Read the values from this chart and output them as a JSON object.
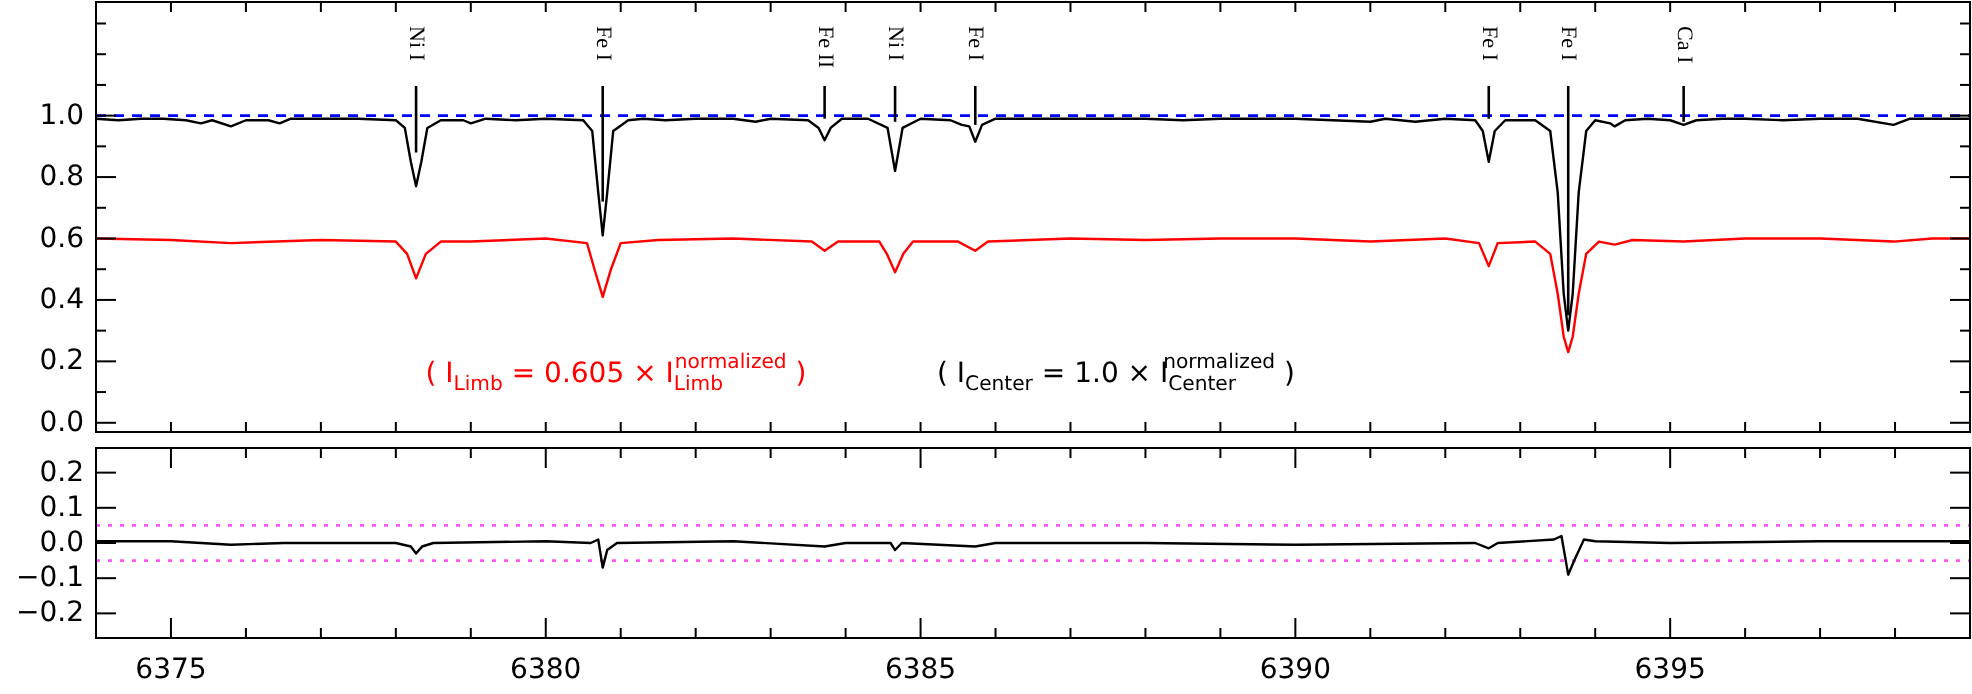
{
  "chart_data": [
    {
      "type": "line",
      "xlim": [
        6374,
        6399
      ],
      "ylim": [
        -0.03,
        1.37
      ],
      "xticks": [
        {
          "value": 6374,
          "label": null
        },
        {
          "value": 6375,
          "label": null
        },
        {
          "value": 6376,
          "label": null
        },
        {
          "value": 6377,
          "label": null
        },
        {
          "value": 6378,
          "label": null
        },
        {
          "value": 6379,
          "label": null
        },
        {
          "value": 6380,
          "label": null
        },
        {
          "value": 6381,
          "label": null
        },
        {
          "value": 6382,
          "label": null
        },
        {
          "value": 6383,
          "label": null
        },
        {
          "value": 6384,
          "label": null
        },
        {
          "value": 6385,
          "label": null
        },
        {
          "value": 6386,
          "label": null
        },
        {
          "value": 6387,
          "label": null
        },
        {
          "value": 6388,
          "label": null
        },
        {
          "value": 6389,
          "label": null
        },
        {
          "value": 6390,
          "label": null
        },
        {
          "value": 6391,
          "label": null
        },
        {
          "value": 6392,
          "label": null
        },
        {
          "value": 6393,
          "label": null
        },
        {
          "value": 6394,
          "label": null
        },
        {
          "value": 6395,
          "label": null
        },
        {
          "value": 6396,
          "label": null
        },
        {
          "value": 6397,
          "label": null
        },
        {
          "value": 6398,
          "label": null
        }
      ],
      "yticks": [
        {
          "value": 0,
          "label": "0.0"
        },
        {
          "value": 0.1,
          "label": null
        },
        {
          "value": 0.2,
          "label": "0.2"
        },
        {
          "value": 0.3,
          "label": null
        },
        {
          "value": 0.4,
          "label": "0.4"
        },
        {
          "value": 0.5,
          "label": null
        },
        {
          "value": 0.6,
          "label": "0.6"
        },
        {
          "value": 0.7,
          "label": null
        },
        {
          "value": 0.8,
          "label": "0.8"
        },
        {
          "value": 0.9,
          "label": null
        },
        {
          "value": 1.0,
          "label": "1.0"
        },
        {
          "value": 1.1,
          "label": null
        },
        {
          "value": 1.2,
          "label": null
        },
        {
          "value": 1.3,
          "label": null
        }
      ],
      "tick_labels": "y",
      "ref_lines": [
        {
          "axis": "y",
          "value": 1.0,
          "color": "#0000ff",
          "line_style": "dashed"
        }
      ],
      "annotations": [
        {
          "text": "Ni I",
          "x": 6378.27,
          "y": 0.88
        },
        {
          "text": "Fe I",
          "x": 6380.76,
          "y": 0.72
        },
        {
          "text": "Fe II",
          "x": 6383.72,
          "y": 0.99
        },
        {
          "text": "Ni I",
          "x": 6384.66,
          "y": 0.98
        },
        {
          "text": "Fe I",
          "x": 6385.73,
          "y": 0.97
        },
        {
          "text": "Fe I",
          "x": 6392.58,
          "y": 0.99
        },
        {
          "text": "Fe I",
          "x": 6393.64,
          "y": 0.35
        },
        {
          "text": "Ca I",
          "x": 6395.18,
          "y": 0.98
        },
        "( I$_{Limb}$ = 0.605 × I$_{Limb}$$^{normalized}$ )",
        "( I$_{Center}$ = 1.0 × I$_{Center}$$^{normalized}$ )"
      ],
      "series": [
        {
          "color": "#000000",
          "x": [
            6374.0,
            6374.3,
            6374.6,
            6374.9,
            6375.2,
            6375.4,
            6375.55,
            6375.8,
            6376.0,
            6376.3,
            6376.45,
            6376.6,
            6377.0,
            6377.5,
            6378.0,
            6378.12,
            6378.2,
            6378.27,
            6378.34,
            6378.42,
            6378.6,
            6378.9,
            6379.0,
            6379.2,
            6379.6,
            6380.0,
            6380.5,
            6380.62,
            6380.7,
            6380.76,
            6380.82,
            6380.9,
            6381.1,
            6381.3,
            6381.6,
            6382.0,
            6382.5,
            6382.8,
            6383.0,
            6383.5,
            6383.64,
            6383.72,
            6383.8,
            6383.95,
            6384.3,
            6384.56,
            6384.66,
            6384.76,
            6385.0,
            6385.4,
            6385.55,
            6385.65,
            6385.73,
            6385.82,
            6386.0,
            6386.5,
            6387.0,
            6387.5,
            6388.0,
            6388.5,
            6389.0,
            6389.5,
            6390.0,
            6390.5,
            6391.0,
            6391.2,
            6391.6,
            6392.0,
            6392.4,
            6392.5,
            6392.58,
            6392.66,
            6392.8,
            6393.2,
            6393.4,
            6393.5,
            6393.58,
            6393.64,
            6393.7,
            6393.78,
            6393.88,
            6394.0,
            6394.2,
            6394.26,
            6394.4,
            6394.7,
            6395.0,
            6395.18,
            6395.35,
            6395.7,
            6396.0,
            6396.5,
            6397.0,
            6397.5,
            6397.98,
            6398.2,
            6398.6,
            6399.0
          ],
          "values": [
            0.99,
            0.985,
            0.99,
            0.99,
            0.985,
            0.975,
            0.985,
            0.965,
            0.985,
            0.985,
            0.975,
            0.99,
            0.99,
            0.99,
            0.985,
            0.96,
            0.85,
            0.77,
            0.85,
            0.96,
            0.985,
            0.985,
            0.975,
            0.99,
            0.985,
            0.99,
            0.985,
            0.95,
            0.75,
            0.61,
            0.75,
            0.95,
            0.985,
            0.99,
            0.985,
            0.99,
            0.99,
            0.98,
            0.99,
            0.985,
            0.96,
            0.92,
            0.96,
            0.99,
            0.99,
            0.96,
            0.82,
            0.96,
            0.99,
            0.985,
            0.97,
            0.965,
            0.915,
            0.97,
            0.99,
            0.99,
            0.99,
            0.99,
            0.99,
            0.985,
            0.99,
            0.99,
            0.99,
            0.985,
            0.98,
            0.99,
            0.98,
            0.99,
            0.985,
            0.95,
            0.85,
            0.95,
            0.985,
            0.985,
            0.95,
            0.75,
            0.42,
            0.3,
            0.42,
            0.75,
            0.95,
            0.985,
            0.975,
            0.965,
            0.985,
            0.99,
            0.985,
            0.97,
            0.985,
            0.99,
            0.99,
            0.985,
            0.99,
            0.99,
            0.97,
            0.99,
            0.99,
            0.99
          ]
        },
        {
          "color": "#ff0000",
          "x": [
            6374.0,
            6375.0,
            6375.8,
            6376.4,
            6377.0,
            6378.0,
            6378.15,
            6378.27,
            6378.4,
            6378.6,
            6379.0,
            6380.0,
            6380.55,
            6380.65,
            6380.76,
            6380.87,
            6381.0,
            6381.5,
            6382.5,
            6383.55,
            6383.72,
            6383.9,
            6384.45,
            6384.55,
            6384.66,
            6384.77,
            6384.9,
            6385.5,
            6385.73,
            6385.9,
            6387.0,
            6388.0,
            6389.0,
            6390.0,
            6391.0,
            6392.0,
            6392.45,
            6392.58,
            6392.7,
            6393.2,
            6393.4,
            6393.5,
            6393.58,
            6393.64,
            6393.7,
            6393.78,
            6393.88,
            6394.05,
            6394.26,
            6394.5,
            6395.18,
            6396.0,
            6397.0,
            6397.98,
            6398.5,
            6399.0
          ],
          "values": [
            0.6,
            0.595,
            0.585,
            0.59,
            0.595,
            0.59,
            0.55,
            0.47,
            0.55,
            0.59,
            0.59,
            0.6,
            0.585,
            0.5,
            0.41,
            0.5,
            0.585,
            0.595,
            0.6,
            0.59,
            0.56,
            0.59,
            0.59,
            0.55,
            0.49,
            0.55,
            0.59,
            0.59,
            0.56,
            0.59,
            0.6,
            0.595,
            0.6,
            0.6,
            0.59,
            0.6,
            0.585,
            0.51,
            0.585,
            0.59,
            0.55,
            0.42,
            0.28,
            0.23,
            0.28,
            0.42,
            0.55,
            0.59,
            0.58,
            0.595,
            0.59,
            0.6,
            0.6,
            0.59,
            0.6,
            0.6
          ]
        }
      ]
    },
    {
      "type": "line",
      "xlim": [
        6374,
        6399
      ],
      "ylim": [
        -0.27,
        0.27
      ],
      "xticks": [
        {
          "value": 6374,
          "label": null
        },
        6375,
        {
          "value": 6376,
          "label": null
        },
        {
          "value": 6377,
          "label": null
        },
        {
          "value": 6378,
          "label": null
        },
        {
          "value": 6379,
          "label": null
        },
        6380,
        {
          "value": 6381,
          "label": null
        },
        {
          "value": 6382,
          "label": null
        },
        {
          "value": 6383,
          "label": null
        },
        {
          "value": 6384,
          "label": null
        },
        6385,
        {
          "value": 6386,
          "label": null
        },
        {
          "value": 6387,
          "label": null
        },
        {
          "value": 6388,
          "label": null
        },
        {
          "value": 6389,
          "label": null
        },
        6390,
        {
          "value": 6391,
          "label": null
        },
        {
          "value": 6392,
          "label": null
        },
        {
          "value": 6393,
          "label": null
        },
        {
          "value": 6394,
          "label": null
        },
        6395,
        {
          "value": 6396,
          "label": null
        },
        {
          "value": 6397,
          "label": null
        },
        {
          "value": 6398,
          "label": null
        }
      ],
      "yticks": [
        {
          "value": -0.2,
          "label": "−0.2"
        },
        {
          "value": -0.1,
          "label": "−0.1"
        },
        {
          "value": 0,
          "label": "0.0"
        },
        0.1,
        0.2
      ],
      "ref_lines": [
        {
          "axis": "y",
          "value": 0.05,
          "color": "#ff55ff",
          "line_style": "dotted"
        },
        {
          "axis": "y",
          "value": -0.05,
          "color": "#ff55ff",
          "line_style": "dotted"
        }
      ],
      "series": [
        {
          "color": "#000000",
          "x": [
            6374.0,
            6375.0,
            6375.8,
            6376.5,
            6378.0,
            6378.2,
            6378.27,
            6378.35,
            6378.5,
            6380.0,
            6380.6,
            6380.7,
            6380.76,
            6380.82,
            6380.95,
            6382.5,
            6383.72,
            6384.0,
            6384.6,
            6384.66,
            6384.75,
            6385.73,
            6386.0,
            6388.0,
            6390.0,
            6392.4,
            6392.58,
            6392.7,
            6393.45,
            6393.55,
            6393.64,
            6393.72,
            6393.85,
            6394.0,
            6395.0,
            6397.0,
            6399.0
          ],
          "values": [
            0.005,
            0.005,
            -0.005,
            0.0,
            0.0,
            -0.01,
            -0.03,
            -0.01,
            0.0,
            0.005,
            0.0,
            0.01,
            -0.07,
            -0.02,
            0.0,
            0.005,
            -0.01,
            0.0,
            0.0,
            -0.02,
            0.0,
            -0.01,
            0.0,
            0.0,
            -0.005,
            0.0,
            -0.015,
            0.0,
            0.01,
            0.02,
            -0.09,
            -0.05,
            0.01,
            0.005,
            0.0,
            0.005,
            0.005
          ]
        }
      ]
    }
  ]
}
